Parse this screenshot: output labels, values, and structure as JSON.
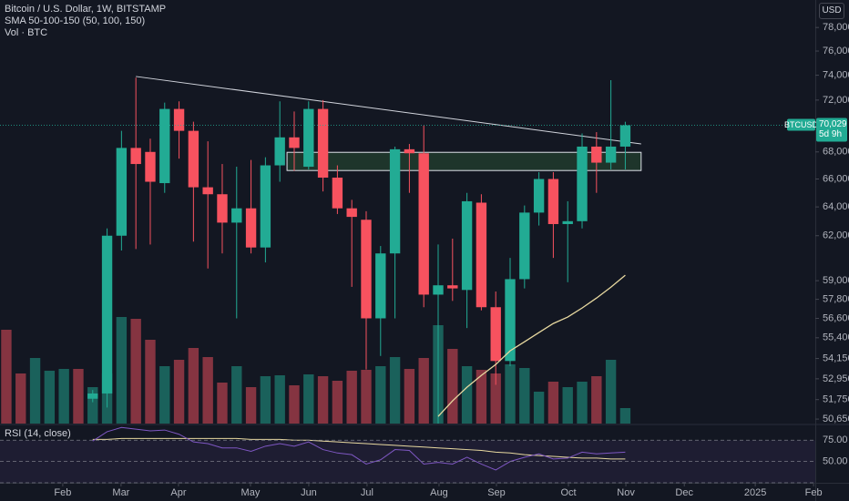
{
  "chart_data": {
    "type": "candlestick",
    "title": "Bitcoin / U.S. Dollar, 1W, BITSTAMP",
    "indicators": [
      "SMA 50-100-150 (50, 100, 150)",
      "Vol · BTC"
    ],
    "currency": "USD",
    "log_scale": true,
    "ylim": [
      50400,
      80400
    ],
    "yticks": [
      {
        "value": 78000,
        "label": "78,000"
      },
      {
        "value": 76000,
        "label": "76,000"
      },
      {
        "value": 74000,
        "label": "74,000"
      },
      {
        "value": 72000,
        "label": "72,000"
      },
      {
        "value": 68000,
        "label": "68,000"
      },
      {
        "value": 66000,
        "label": "66,000"
      },
      {
        "value": 64000,
        "label": "64,000"
      },
      {
        "value": 62000,
        "label": "62,000"
      },
      {
        "value": 59000,
        "label": "59,000"
      },
      {
        "value": 57800,
        "label": "57,800"
      },
      {
        "value": 56600,
        "label": "56,600"
      },
      {
        "value": 55400,
        "label": "55,400"
      },
      {
        "value": 54150,
        "label": "54,150"
      },
      {
        "value": 52950,
        "label": "52,950"
      },
      {
        "value": 51750,
        "label": "51,750"
      },
      {
        "value": 50650,
        "label": "50,650"
      }
    ],
    "xlim": [
      -0.44,
      56.2
    ],
    "xticks": [
      {
        "value": 3.92,
        "label": "Feb"
      },
      {
        "value": 7.97,
        "label": "Mar"
      },
      {
        "value": 11.96,
        "label": "Apr"
      },
      {
        "value": 16.96,
        "label": "May"
      },
      {
        "value": 21.01,
        "label": "Jun"
      },
      {
        "value": 25.06,
        "label": "Jul"
      },
      {
        "value": 30.06,
        "label": "Aug"
      },
      {
        "value": 34.05,
        "label": "Sep"
      },
      {
        "value": 39.05,
        "label": "Oct"
      },
      {
        "value": 43.04,
        "label": "Nov"
      },
      {
        "value": 47.1,
        "label": "Dec"
      },
      {
        "value": 52.03,
        "label": "2025"
      },
      {
        "value": 56.08,
        "label": "Feb"
      }
    ],
    "up_color": "#22ab94",
    "down_color": "#f7525f",
    "x": [
      6,
      7,
      8,
      9,
      10,
      11,
      12,
      13,
      14,
      15,
      16,
      17,
      18,
      19,
      20,
      21,
      22,
      23,
      24,
      25,
      26,
      27,
      28,
      29,
      30,
      31,
      32,
      33,
      34,
      35,
      36,
      37,
      38,
      39,
      40,
      41,
      42,
      43
    ],
    "open": [
      51800,
      52100,
      62000,
      68300,
      68000,
      65700,
      71300,
      69600,
      65400,
      64900,
      62900,
      63900,
      61200,
      67000,
      69100,
      66900,
      71300,
      66100,
      63900,
      63100,
      56600,
      60800,
      68200,
      67900,
      58100,
      58700,
      58400,
      64300,
      57300,
      54000,
      59100,
      63600,
      66000,
      62800,
      63000,
      68400,
      67200,
      68400
    ],
    "high": [
      52300,
      62500,
      69600,
      73800,
      69000,
      71800,
      71900,
      70300,
      68800,
      67100,
      66900,
      67400,
      67600,
      71900,
      71100,
      71900,
      72000,
      67000,
      64500,
      63700,
      61300,
      68400,
      68600,
      70000,
      61400,
      61800,
      65000,
      64900,
      58300,
      60500,
      64100,
      66500,
      66500,
      64400,
      69400,
      69500,
      73600,
      70300
    ],
    "low": [
      51600,
      51300,
      61000,
      61100,
      61400,
      65000,
      67500,
      61600,
      59800,
      60800,
      56600,
      60800,
      60200,
      65800,
      66600,
      66700,
      65100,
      63500,
      58600,
      53500,
      54300,
      56600,
      65000,
      57300,
      49000,
      57700,
      56000,
      57100,
      52600,
      53700,
      58500,
      62700,
      60500,
      58900,
      62500,
      65000,
      66700,
      66700
    ],
    "close": [
      52100,
      62000,
      68300,
      67100,
      65800,
      71300,
      69600,
      65400,
      64900,
      62900,
      63900,
      61200,
      67000,
      69100,
      68300,
      71300,
      66100,
      63900,
      63300,
      56600,
      60800,
      68200,
      67900,
      58100,
      58700,
      58500,
      64400,
      57300,
      54000,
      59100,
      63600,
      66000,
      62800,
      63000,
      68400,
      67200,
      68400,
      70029
    ],
    "volume": {
      "x": [
        0,
        1,
        2,
        3,
        4,
        5,
        6,
        7,
        8,
        9,
        10,
        11,
        12,
        13,
        14,
        15,
        16,
        17,
        18,
        19,
        20,
        21,
        22,
        23,
        24,
        25,
        26,
        27,
        28,
        29,
        30,
        31,
        32,
        33,
        34,
        35,
        36,
        37,
        38,
        39,
        40,
        41,
        42,
        43
      ],
      "values": [
        103,
        55,
        72,
        58,
        60,
        60,
        40,
        55,
        117,
        115,
        92,
        63,
        70,
        83,
        73,
        45,
        63,
        40,
        52,
        53,
        42,
        54,
        52,
        47,
        58,
        59,
        63,
        73,
        60,
        72,
        108,
        82,
        63,
        59,
        55,
        65,
        61,
        35,
        46,
        40,
        46,
        52,
        70,
        17
      ],
      "colors": [
        "#f7525f",
        "#f7525f",
        "#22ab94",
        "#22ab94",
        "#22ab94",
        "#f7525f",
        "#22ab94",
        "#22ab94",
        "#22ab94",
        "#f7525f",
        "#f7525f",
        "#22ab94",
        "#f7525f",
        "#f7525f",
        "#f7525f",
        "#f7525f",
        "#22ab94",
        "#f7525f",
        "#22ab94",
        "#22ab94",
        "#f7525f",
        "#22ab94",
        "#f7525f",
        "#f7525f",
        "#f7525f",
        "#f7525f",
        "#22ab94",
        "#22ab94",
        "#f7525f",
        "#f7525f",
        "#22ab94",
        "#f7525f",
        "#22ab94",
        "#f7525f",
        "#f7525f",
        "#22ab94",
        "#22ab94",
        "#22ab94",
        "#f7525f",
        "#22ab94",
        "#22ab94",
        "#f7525f",
        "#22ab94",
        "#22ab94"
      ],
      "vlim": [
        0,
        250
      ]
    },
    "sma": {
      "color": "#e8d9a0",
      "x": [
        30,
        31,
        32,
        33,
        34,
        35,
        36,
        37,
        38,
        39,
        40,
        41,
        42,
        43
      ],
      "values": [
        50800,
        51680,
        52460,
        53150,
        53790,
        54610,
        55160,
        55720,
        56280,
        56680,
        57250,
        57880,
        58580,
        59360
      ]
    },
    "trendline": {
      "color": "#d1d4dc",
      "x": [
        9,
        44.1
      ],
      "values": [
        73900,
        68600
      ]
    },
    "zone": {
      "color": "#4caf50",
      "x": [
        19.5,
        44.1
      ],
      "values": [
        66620,
        67970
      ]
    },
    "last_price": {
      "symbol": "BTCUSD",
      "value": 70029,
      "label": "70,029",
      "countdown": "5d 9h",
      "color": "#22ab94"
    },
    "rsi": {
      "title": "RSI (14, close)",
      "ylim": [
        25,
        93.5
      ],
      "yticks": [
        {
          "value": 75,
          "label": "75.00"
        },
        {
          "value": 50,
          "label": "50.00"
        },
        {
          "value": 25,
          "label": null
        }
      ],
      "line": {
        "color": "#7e57c2",
        "values": [
          74,
          85,
          90,
          88,
          86,
          87,
          82,
          73,
          71,
          66,
          66,
          62,
          68,
          71,
          68,
          73,
          64,
          60,
          58,
          47,
          52,
          64,
          63,
          47,
          49,
          47,
          55,
          47,
          40,
          50,
          55,
          59,
          53,
          54,
          61,
          59,
          60,
          61
        ]
      },
      "ma": {
        "color": "#e8d9a0",
        "values": [
          76,
          76,
          77,
          77,
          77,
          77,
          77,
          77,
          77,
          77,
          77,
          76,
          76,
          76,
          75,
          75,
          74,
          73,
          72,
          71,
          70,
          69,
          68,
          67,
          66,
          65,
          64,
          63,
          61,
          60,
          58,
          57,
          56,
          55,
          54,
          54,
          53,
          53
        ]
      }
    }
  }
}
